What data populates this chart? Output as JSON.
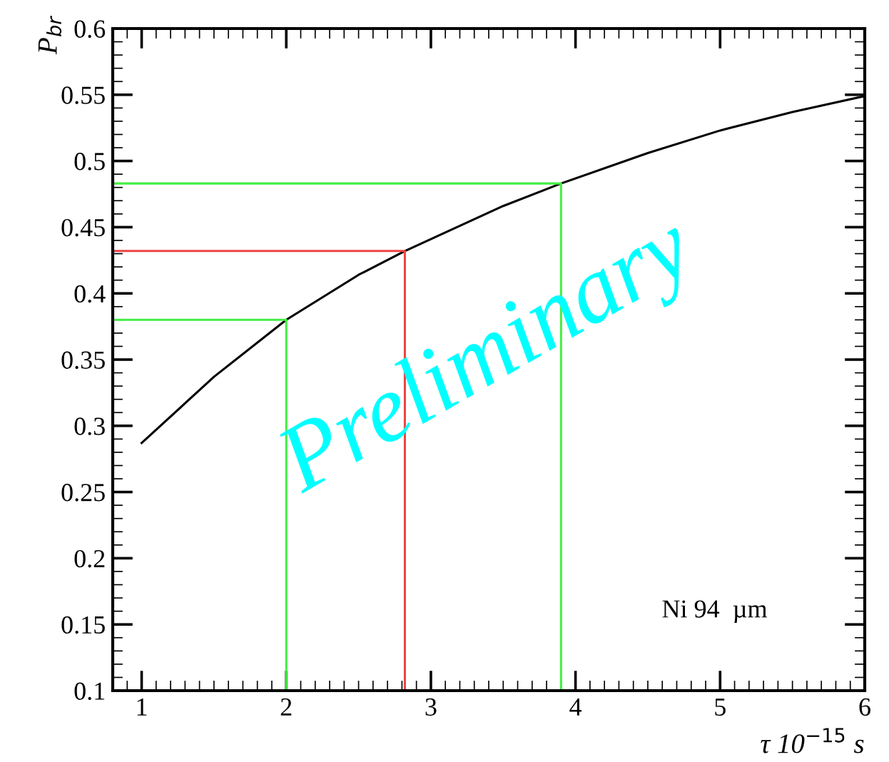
{
  "chart_data": {
    "type": "line",
    "xlabel": "τ 10$^{−15}$ s",
    "ylabel": "P$_{br}$",
    "xlim": [
      0.8,
      6
    ],
    "ylim": [
      0.1,
      0.6
    ],
    "xticks": [
      1,
      2,
      3,
      4,
      5,
      6
    ],
    "yticks": [
      0.1,
      0.15,
      0.2,
      0.25,
      0.3,
      0.35,
      0.4,
      0.45,
      0.5,
      0.55,
      0.6
    ],
    "grid": false,
    "legend": false,
    "marker": "none",
    "line_style": "solid",
    "annotations": [
      "Preliminary",
      "Ni 94  µm"
    ],
    "series": [
      {
        "color": "#000000",
        "x": [
          1,
          1.5,
          2,
          2.5,
          2.82,
          3,
          3.5,
          3.9,
          4.5,
          5,
          5.5,
          6
        ],
        "values": [
          0.287,
          0.337,
          0.38,
          0.414,
          0.432,
          0.441,
          0.466,
          0.483,
          0.506,
          0.523,
          0.537,
          0.549
        ]
      },
      {
        "color": "#44ee44",
        "x": [
          0.8,
          2,
          2
        ],
        "values": [
          0.38,
          0.38,
          0.1
        ]
      },
      {
        "color": "#ee4444",
        "x": [
          0.8,
          2.82,
          2.82
        ],
        "values": [
          0.432,
          0.432,
          0.1
        ]
      },
      {
        "color": "#44ee44",
        "x": [
          0.8,
          3.9,
          3.9
        ],
        "values": [
          0.483,
          0.483,
          0.1
        ]
      }
    ]
  }
}
